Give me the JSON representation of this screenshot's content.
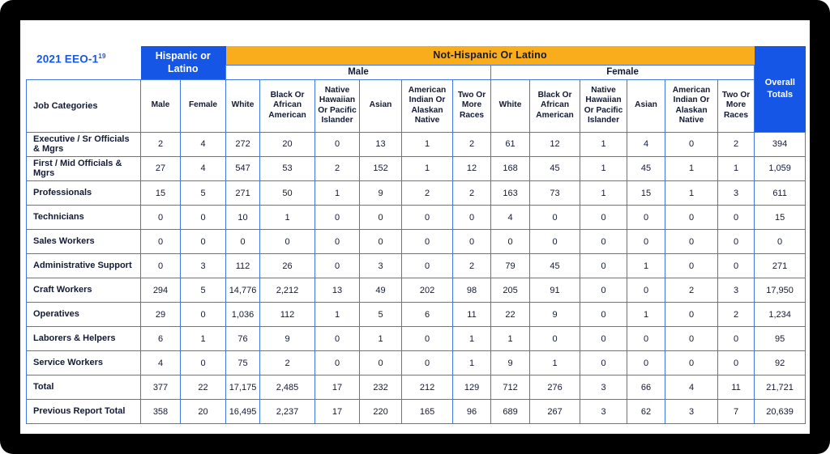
{
  "page": {
    "title": "2021 EEO-1",
    "title_superscript": "19"
  },
  "colors": {
    "accent_blue": "#1656E6",
    "grid_border_blue": "#4277E8",
    "banner_orange": "#F9AC1C",
    "text_navy": "#121A35",
    "frame_black": "#000000",
    "background_white": "#FFFFFF"
  },
  "chart_data": {
    "type": "table",
    "title": "2021 EEO-1",
    "title_superscript": "19",
    "hispanic_header": "Hispanic or Latino",
    "not_hispanic_header": "Not-Hispanic Or Latino",
    "male_header": "Male",
    "female_header": "Female",
    "overall_header": "Overall Totals",
    "job_column_header": "Job Categories",
    "hispanic_columns": [
      "Male",
      "Female"
    ],
    "race_columns": [
      "White",
      "Black Or African American",
      "Native Hawaiian Or Pacific Islander",
      "Asian",
      "American Indian Or Alaskan Native",
      "Two Or More Races"
    ],
    "rows": [
      {
        "label": "Executive / Sr Officials & Mgrs",
        "values": [
          "2",
          "4",
          "272",
          "20",
          "0",
          "13",
          "1",
          "2",
          "61",
          "12",
          "1",
          "4",
          "0",
          "2",
          "394"
        ]
      },
      {
        "label": "First / Mid Officials & Mgrs",
        "values": [
          "27",
          "4",
          "547",
          "53",
          "2",
          "152",
          "1",
          "12",
          "168",
          "45",
          "1",
          "45",
          "1",
          "1",
          "1,059"
        ]
      },
      {
        "label": "Professionals",
        "values": [
          "15",
          "5",
          "271",
          "50",
          "1",
          "9",
          "2",
          "2",
          "163",
          "73",
          "1",
          "15",
          "1",
          "3",
          "611"
        ]
      },
      {
        "label": "Technicians",
        "values": [
          "0",
          "0",
          "10",
          "1",
          "0",
          "0",
          "0",
          "0",
          "4",
          "0",
          "0",
          "0",
          "0",
          "0",
          "15"
        ]
      },
      {
        "label": "Sales Workers",
        "values": [
          "0",
          "0",
          "0",
          "0",
          "0",
          "0",
          "0",
          "0",
          "0",
          "0",
          "0",
          "0",
          "0",
          "0",
          "0"
        ]
      },
      {
        "label": "Administrative Support",
        "values": [
          "0",
          "3",
          "112",
          "26",
          "0",
          "3",
          "0",
          "2",
          "79",
          "45",
          "0",
          "1",
          "0",
          "0",
          "271"
        ]
      },
      {
        "label": "Craft Workers",
        "values": [
          "294",
          "5",
          "14,776",
          "2,212",
          "13",
          "49",
          "202",
          "98",
          "205",
          "91",
          "0",
          "0",
          "2",
          "3",
          "17,950"
        ]
      },
      {
        "label": "Operatives",
        "values": [
          "29",
          "0",
          "1,036",
          "112",
          "1",
          "5",
          "6",
          "11",
          "22",
          "9",
          "0",
          "1",
          "0",
          "2",
          "1,234"
        ]
      },
      {
        "label": "Laborers & Helpers",
        "values": [
          "6",
          "1",
          "76",
          "9",
          "0",
          "1",
          "0",
          "1",
          "1",
          "0",
          "0",
          "0",
          "0",
          "0",
          "95"
        ]
      },
      {
        "label": "Service Workers",
        "values": [
          "4",
          "0",
          "75",
          "2",
          "0",
          "0",
          "0",
          "1",
          "9",
          "1",
          "0",
          "0",
          "0",
          "0",
          "92"
        ]
      },
      {
        "label": "Total",
        "values": [
          "377",
          "22",
          "17,175",
          "2,485",
          "17",
          "232",
          "212",
          "129",
          "712",
          "276",
          "3",
          "66",
          "4",
          "11",
          "21,721"
        ]
      },
      {
        "label": "Previous Report Total",
        "values": [
          "358",
          "20",
          "16,495",
          "2,237",
          "17",
          "220",
          "165",
          "96",
          "689",
          "267",
          "3",
          "62",
          "3",
          "7",
          "20,639"
        ]
      }
    ]
  }
}
